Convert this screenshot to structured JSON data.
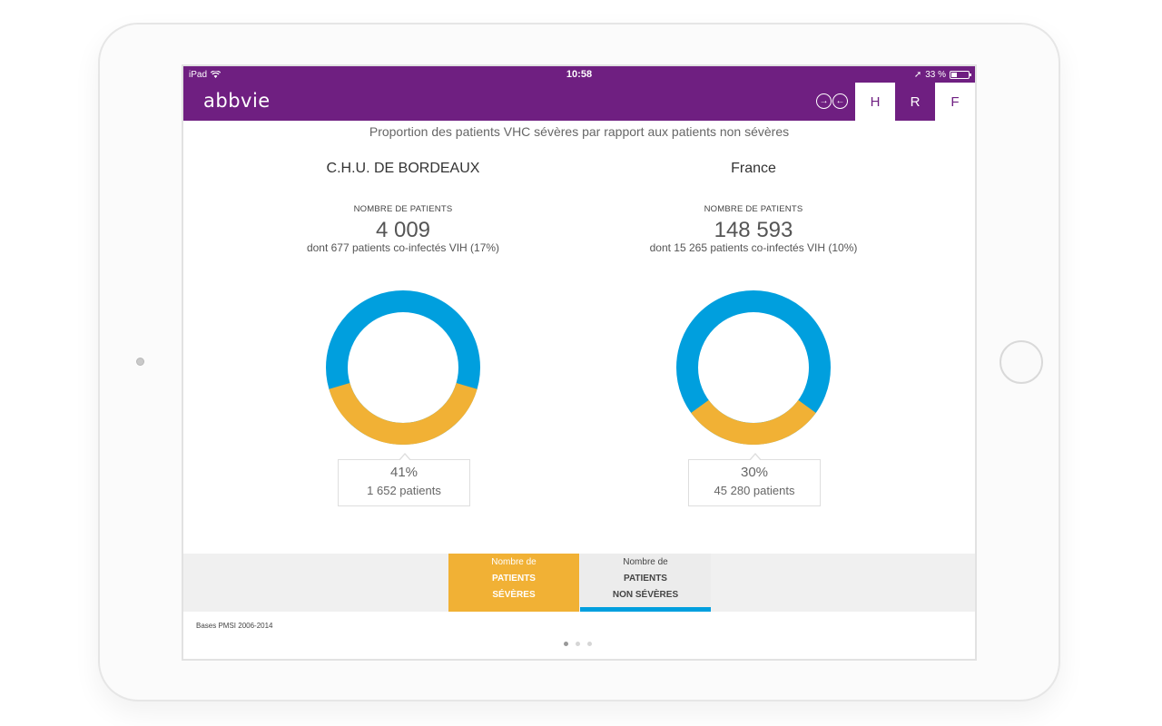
{
  "statusbar": {
    "device": "iPad",
    "time": "10:58",
    "battery": "33 %",
    "battery_level": 0.33
  },
  "app": {
    "logo": "abbvie"
  },
  "tabs": [
    {
      "label": "H",
      "active": true
    },
    {
      "label": "R",
      "active": false
    },
    {
      "label": "F",
      "active": false
    }
  ],
  "page_title": "Proportion des patients VHC sévères par rapport aux patients non sévères",
  "colors": {
    "brand_purple": "#6f1f81",
    "severe": "#f1b135",
    "non_severe": "#009fde"
  },
  "panels": [
    {
      "title": "C.H.U. DE BORDEAUX",
      "count_label": "NOMBRE DE PATIENTS",
      "count": "4 009",
      "subtext": "dont 677 patients co-infectés VIH (17%)",
      "severe_percent": "41%",
      "severe_patients": "1 652 patients",
      "severe_fraction": 0.41
    },
    {
      "title": "France",
      "count_label": "NOMBRE DE PATIENTS",
      "count": "148 593",
      "subtext": "dont 15 265 patients co-infectés VIH (10%)",
      "severe_percent": "30%",
      "severe_patients": "45 280 patients",
      "severe_fraction": 0.3
    }
  ],
  "legend": {
    "severe": {
      "line1": "Nombre de",
      "line2": "PATIENTS",
      "line3": "SÉVÈRES"
    },
    "non_severe": {
      "line1": "Nombre de",
      "line2": "PATIENTS",
      "line3": "NON SÉVÈRES"
    }
  },
  "source": "Bases PMSI 2006-2014",
  "pagination": {
    "count": 3,
    "current": 1
  }
}
